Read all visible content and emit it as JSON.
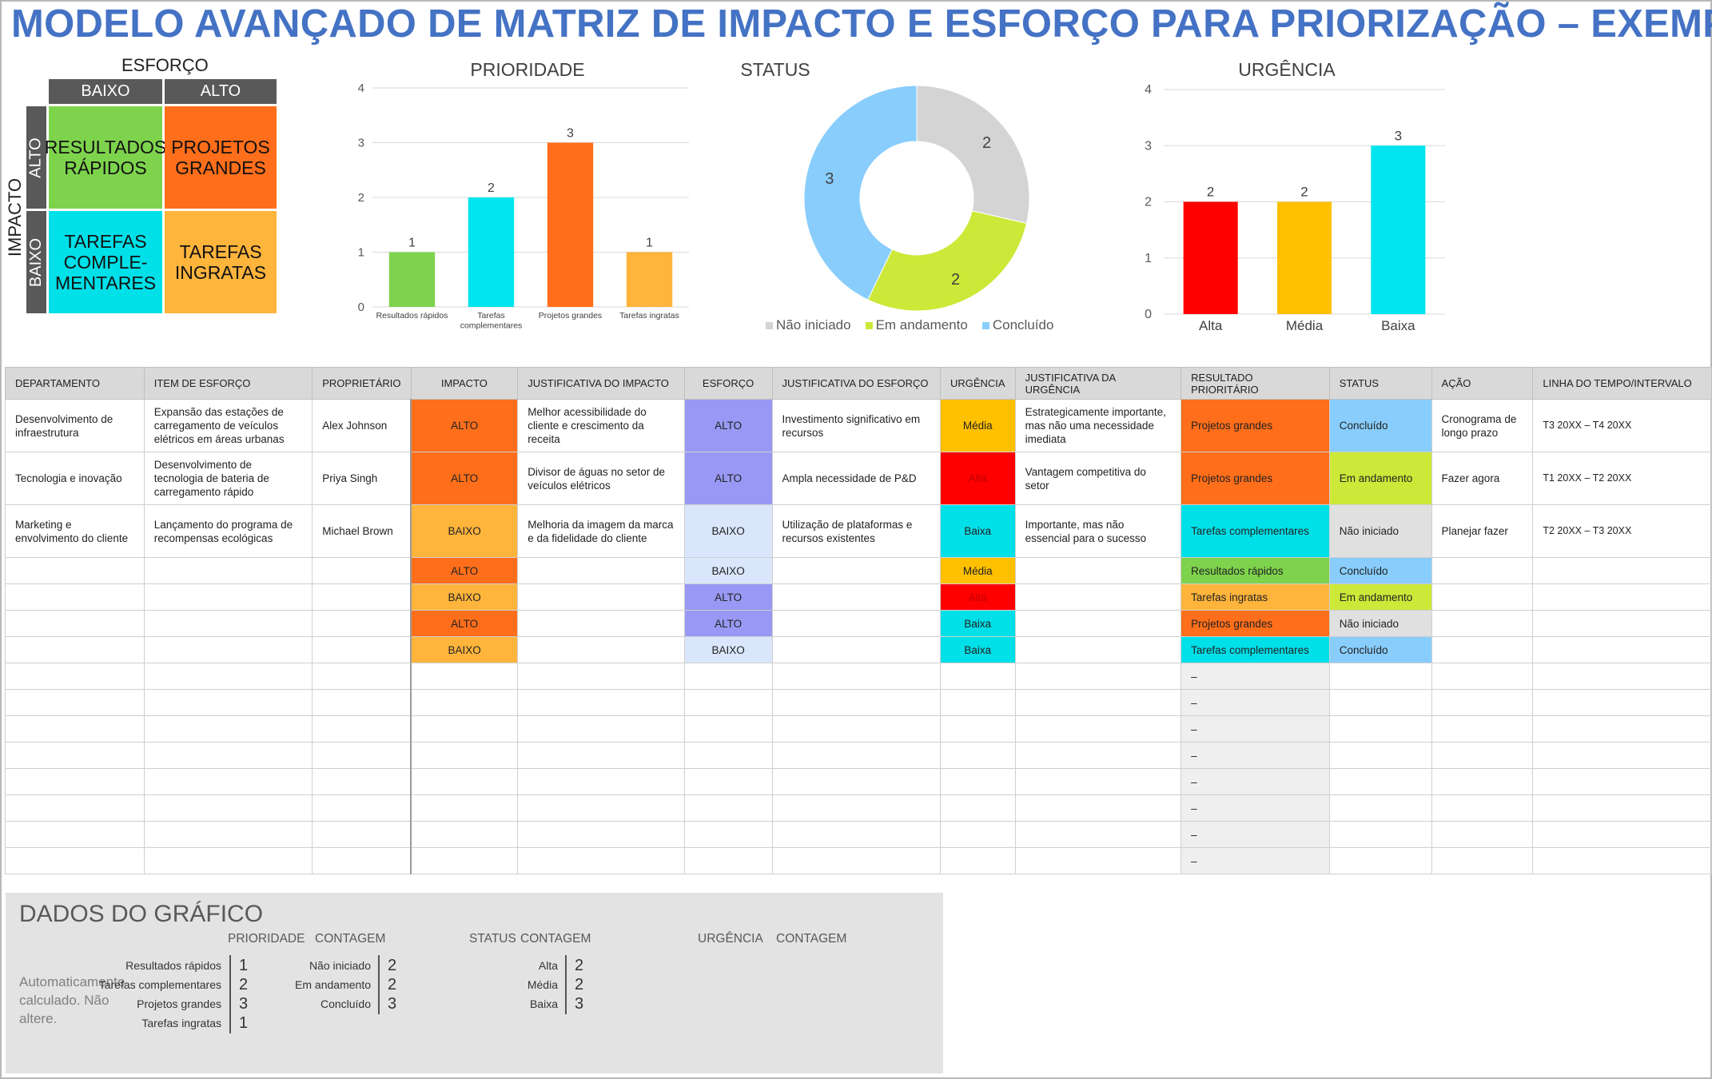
{
  "title": "MODELO AVANÇADO DE MATRIZ DE IMPACTO E ESFORÇO PARA PRIORIZAÇÃO – EXEMPLO",
  "matrix": {
    "effort_label": "ESFORÇO",
    "impact_label": "IMPACTO",
    "col_low": "BAIXO",
    "col_high": "ALTO",
    "row_high": "ALTO",
    "row_low": "BAIXO",
    "q_quick": "RESULTADOS\nRÁPIDOS",
    "q_major": "PROJETOS\nGRANDES",
    "q_fill": "TAREFAS\nCOMPLE-\nMENTARES",
    "q_thankless": "TAREFAS\nINGRATAS",
    "colors": {
      "quick": "#7ed34d",
      "major": "#ff6e1a",
      "fill": "#00e0e8",
      "thankless": "#ffb43c",
      "header": "#595959"
    }
  },
  "chart_data": [
    {
      "id": "prioridade",
      "type": "bar",
      "title": "PRIORIDADE",
      "categories": [
        "Resultados rápidos",
        "Tarefas complementares",
        "Projetos grandes",
        "Tarefas ingratas"
      ],
      "values": [
        1,
        2,
        3,
        1
      ],
      "colors": [
        "#7ed34d",
        "#00e5ee",
        "#ff6e1a",
        "#ffb43c"
      ],
      "ylim": [
        0,
        4
      ],
      "yticks": [
        0,
        1,
        2,
        3,
        4
      ],
      "grid": true
    },
    {
      "id": "status",
      "type": "pie",
      "title": "STATUS",
      "categories": [
        "Não iniciado",
        "Em andamento",
        "Concluído"
      ],
      "values": [
        2,
        2,
        3
      ],
      "colors": [
        "#d4d4d4",
        "#cce838",
        "#88cdfc"
      ],
      "donut": true,
      "legend": "bottom"
    },
    {
      "id": "urgencia",
      "type": "bar",
      "title": "URGÊNCIA",
      "categories": [
        "Alta",
        "Média",
        "Baixa"
      ],
      "values": [
        2,
        2,
        3
      ],
      "colors": [
        "#ff0000",
        "#ffc000",
        "#00e5ee"
      ],
      "ylim": [
        0,
        4
      ],
      "yticks": [
        0,
        1,
        2,
        3,
        4
      ],
      "grid": true
    }
  ],
  "table": {
    "headers": [
      "DEPARTAMENTO",
      "ITEM DE ESFORÇO",
      "PROPRIETÁRIO",
      "IMPACTO",
      "JUSTIFICATIVA DO IMPACTO",
      "ESFORÇO",
      "JUSTIFICATIVA DO ESFORÇO",
      "URGÊNCIA",
      "JUSTIFICATIVA DA URGÊNCIA",
      "RESULTADO PRIORITÁRIO",
      "STATUS",
      "AÇÃO",
      "LINHA DO TEMPO/INTERVALO"
    ],
    "rows": [
      [
        "Desenvolvimento de infraestrutura",
        "Expansão das estações de carregamento de veículos elétricos em áreas urbanas",
        "Alex Johnson",
        "ALTO",
        "Melhor acessibilidade do cliente e crescimento da receita",
        "ALTO",
        "Investimento significativo em recursos",
        "Média",
        "Estrategicamente importante, mas não uma necessidade imediata",
        "Projetos grandes",
        "Concluído",
        "Cronograma de longo prazo",
        "T3 20XX – T4 20XX"
      ],
      [
        "Tecnologia e inovação",
        "Desenvolvimento de tecnologia de bateria de carregamento rápido",
        "Priya Singh",
        "ALTO",
        "Divisor de águas no setor de veículos elétricos",
        "ALTO",
        "Ampla necessidade de P&D",
        "Alta",
        "Vantagem competitiva do setor",
        "Projetos grandes",
        "Em andamento",
        "Fazer agora",
        "T1 20XX – T2 20XX"
      ],
      [
        "Marketing e envolvimento do cliente",
        "Lançamento do programa de recompensas ecológicas",
        "Michael Brown",
        "BAIXO",
        "Melhoria da imagem da marca e da fidelidade do cliente",
        "BAIXO",
        "Utilização de plataformas e recursos existentes",
        "Baixa",
        "Importante, mas não essencial para o sucesso",
        "Tarefas complementares",
        "Não iniciado",
        "Planejar fazer",
        "T2 20XX – T3 20XX"
      ],
      [
        "",
        "",
        "",
        "ALTO",
        "",
        "BAIXO",
        "",
        "Média",
        "",
        "Resultados rápidos",
        "Concluído",
        "",
        ""
      ],
      [
        "",
        "",
        "",
        "BAIXO",
        "",
        "ALTO",
        "",
        "Alta",
        "",
        "Tarefas ingratas",
        "Em andamento",
        "",
        ""
      ],
      [
        "",
        "",
        "",
        "ALTO",
        "",
        "ALTO",
        "",
        "Baixa",
        "",
        "Projetos grandes",
        "Não iniciado",
        "",
        ""
      ],
      [
        "",
        "",
        "",
        "BAIXO",
        "",
        "BAIXO",
        "",
        "Baixa",
        "",
        "Tarefas complementares",
        "Concluído",
        "",
        ""
      ],
      [
        "",
        "",
        "",
        "",
        "",
        "",
        "",
        "",
        "",
        "–",
        "",
        "",
        ""
      ],
      [
        "",
        "",
        "",
        "",
        "",
        "",
        "",
        "",
        "",
        "–",
        "",
        "",
        ""
      ],
      [
        "",
        "",
        "",
        "",
        "",
        "",
        "",
        "",
        "",
        "–",
        "",
        "",
        ""
      ],
      [
        "",
        "",
        "",
        "",
        "",
        "",
        "",
        "",
        "",
        "–",
        "",
        "",
        ""
      ],
      [
        "",
        "",
        "",
        "",
        "",
        "",
        "",
        "",
        "",
        "–",
        "",
        "",
        ""
      ],
      [
        "",
        "",
        "",
        "",
        "",
        "",
        "",
        "",
        "",
        "–",
        "",
        "",
        ""
      ],
      [
        "",
        "",
        "",
        "",
        "",
        "",
        "",
        "",
        "",
        "–",
        "",
        "",
        ""
      ],
      [
        "",
        "",
        "",
        "",
        "",
        "",
        "",
        "",
        "",
        "–",
        "",
        "",
        ""
      ]
    ],
    "fills": {
      "impact": {
        "ALTO": "#ff6e1a",
        "BAIXO": "#ffb43c"
      },
      "effort": {
        "ALTO": "#9999f5",
        "BAIXO": "#d9e6fb"
      },
      "urgency": {
        "Alta": "#ff0000",
        "Média": "#ffc000",
        "Baixa": "#00e0e8"
      },
      "result": {
        "Projetos grandes": "#ff6e1a",
        "Tarefas complementares": "#00e0e8",
        "Resultados rápidos": "#7ed34d",
        "Tarefas ingratas": "#ffb43c",
        "–": "#efefef"
      },
      "status": {
        "Concluído": "#88cdfc",
        "Em andamento": "#cce838",
        "Não iniciado": "#e0e0e0"
      }
    }
  },
  "panel": {
    "title": "DADOS DO GRÁFICO",
    "note": "Automaticamente calculado. Não altere.",
    "count_label": "CONTAGEM",
    "priority": {
      "label": "PRIORIDADE",
      "items": [
        [
          "Resultados rápidos",
          "1"
        ],
        [
          "Tarefas complementares",
          "2"
        ],
        [
          "Projetos grandes",
          "3"
        ],
        [
          "Tarefas ingratas",
          "1"
        ]
      ]
    },
    "status": {
      "label": "STATUS",
      "items": [
        [
          "Não iniciado",
          "2"
        ],
        [
          "Em andamento",
          "2"
        ],
        [
          "Concluído",
          "3"
        ]
      ]
    },
    "urgency": {
      "label": "URGÊNCIA",
      "items": [
        [
          "Alta",
          "2"
        ],
        [
          "Média",
          "2"
        ],
        [
          "Baixa",
          "3"
        ]
      ]
    }
  }
}
